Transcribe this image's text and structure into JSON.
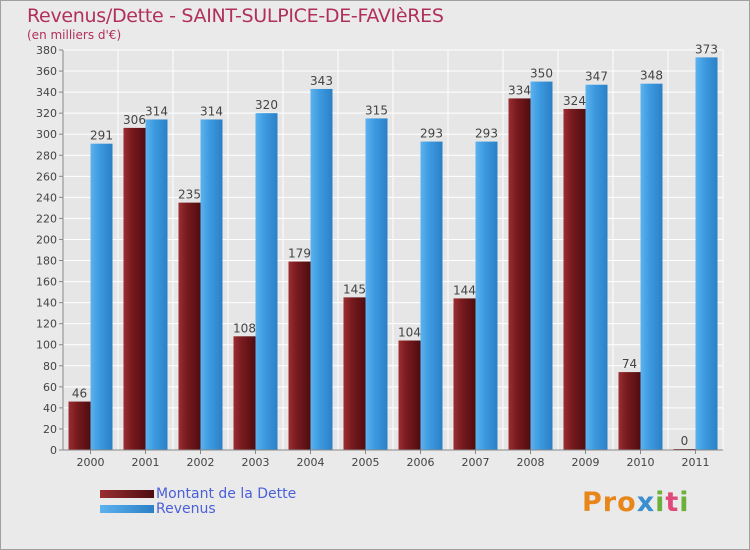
{
  "title": "Revenus/Dette - SAINT-SULPICE-DE-FAVIèRES",
  "subtitle": "(en milliers d'€)",
  "logo_text": "Proxiti",
  "colors": {
    "debt": "#7a1b1f",
    "revenue": "#3d9be0",
    "title": "#b0305a",
    "legend_text": "#4a5fd8"
  },
  "chart_data": {
    "type": "bar",
    "categories": [
      "2000",
      "2001",
      "2002",
      "2003",
      "2004",
      "2005",
      "2006",
      "2007",
      "2008",
      "2009",
      "2010",
      "2011"
    ],
    "series": [
      {
        "name": "Montant de la Dette",
        "values": [
          46,
          306,
          235,
          108,
          179,
          145,
          104,
          144,
          334,
          324,
          74,
          0
        ]
      },
      {
        "name": "Revenus",
        "values": [
          291,
          314,
          314,
          320,
          343,
          315,
          293,
          293,
          350,
          347,
          348,
          373
        ]
      }
    ],
    "ylim": [
      0,
      380
    ],
    "yticks": [
      0,
      20,
      40,
      60,
      80,
      100,
      120,
      140,
      160,
      180,
      200,
      220,
      240,
      260,
      280,
      300,
      320,
      340,
      360,
      380
    ],
    "grid": true,
    "legend_position": "bottom-left"
  }
}
